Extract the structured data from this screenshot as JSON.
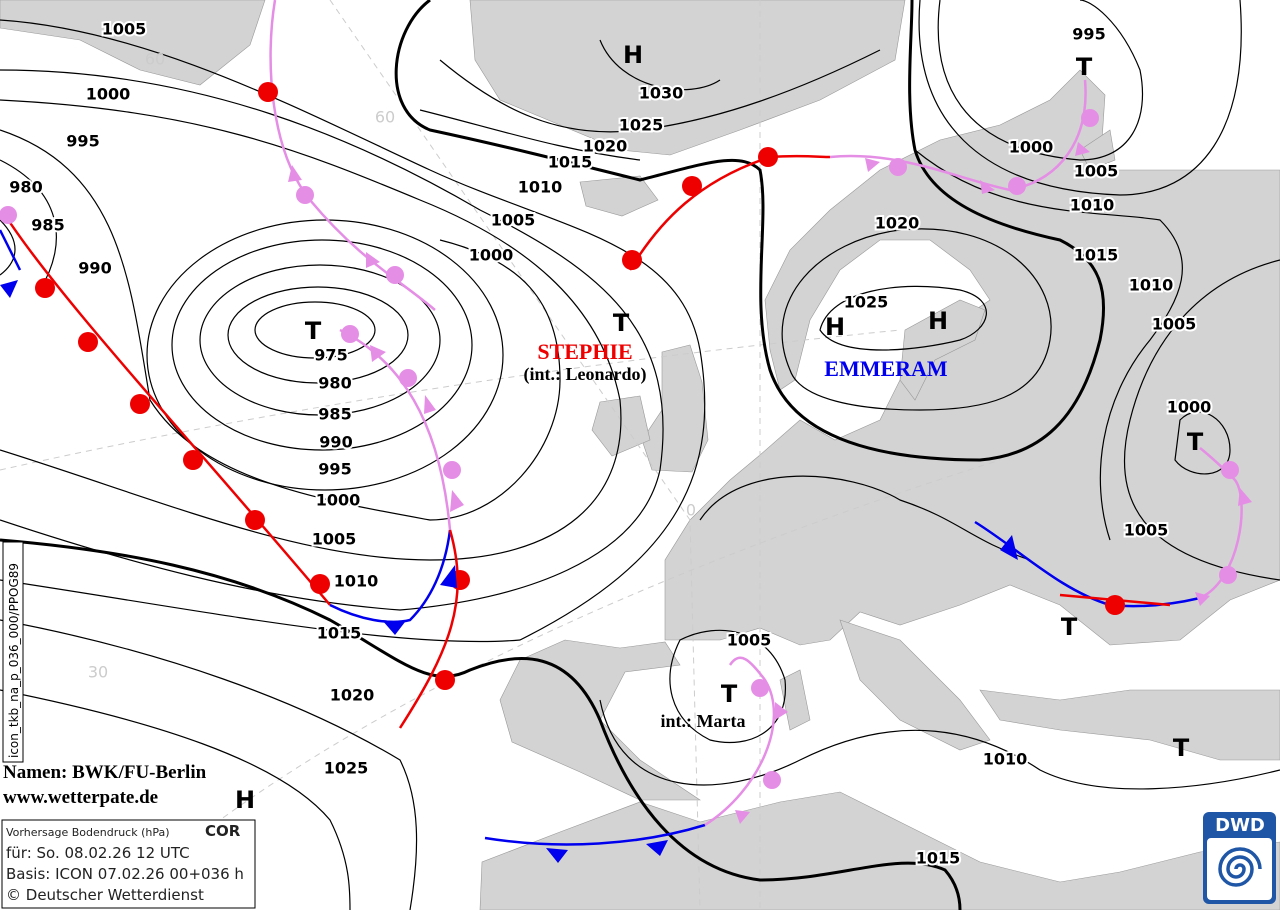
{
  "map": {
    "isobar_labels": [
      "1005",
      "1000",
      "995",
      "980",
      "985",
      "990",
      "975",
      "980",
      "985",
      "990",
      "995",
      "1000",
      "1005",
      "1010",
      "1015",
      "1020",
      "1025",
      "1030",
      "1025",
      "1020",
      "1015",
      "1010",
      "1005",
      "1000",
      "995",
      "1000",
      "1005",
      "1010",
      "1015",
      "1010",
      "1005",
      "1020",
      "1025",
      "1000",
      "1005",
      "1005",
      "1010",
      "1015"
    ],
    "centers": [
      "H",
      "T",
      "T",
      "H",
      "H",
      "T",
      "T",
      "T",
      "T",
      "T"
    ],
    "latitudes": [
      "60",
      "60",
      "30",
      "0"
    ],
    "systems": {
      "stephie": "STEPHIE",
      "stephie_int": "(int.: Leonardo)",
      "emmeram": "EMMERAM",
      "marta": "int.: Marta"
    }
  },
  "credits": {
    "names": "Namen: BWK/FU-Berlin",
    "site": "www.wetterpate.de",
    "legend_h": "H"
  },
  "info": {
    "product": "Vorhersage Bodendruck (hPa)",
    "status": "COR",
    "valid": "für:  So. 08.02.26  12 UTC",
    "base": "Basis: ICON  07.02.26 00+036 h",
    "copyright": "© Deutscher Wetterdienst"
  },
  "product_code": "icon_tkb_na_p_036_000/PPOG89",
  "logo": "DWD"
}
